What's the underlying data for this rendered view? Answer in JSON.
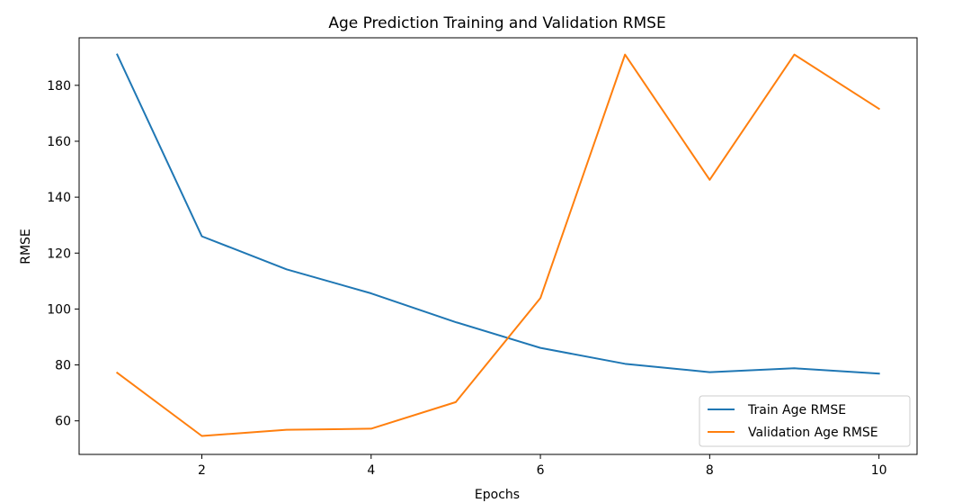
{
  "chart_data": {
    "type": "line",
    "title": "Age Prediction Training and Validation RMSE",
    "xlabel": "Epochs",
    "ylabel": "RMSE",
    "x": [
      1,
      2,
      3,
      4,
      5,
      6,
      7,
      8,
      9,
      10
    ],
    "xlim": [
      0.55,
      10.45
    ],
    "ylim": [
      48,
      197
    ],
    "xticks": [
      2,
      4,
      6,
      8,
      10
    ],
    "yticks": [
      60,
      80,
      100,
      120,
      140,
      160,
      180
    ],
    "grid": false,
    "legend_position": "lower right",
    "series": [
      {
        "name": "Train Age RMSE",
        "color": "#1f77b4",
        "values": [
          191.0,
          126.0,
          114.2,
          105.6,
          95.3,
          86.1,
          80.4,
          77.4,
          78.8,
          76.9
        ]
      },
      {
        "name": "Validation Age RMSE",
        "color": "#ff7f0e",
        "values": [
          77.2,
          54.6,
          56.8,
          57.2,
          66.7,
          103.9,
          191.0,
          146.2,
          191.0,
          171.6
        ]
      }
    ]
  }
}
